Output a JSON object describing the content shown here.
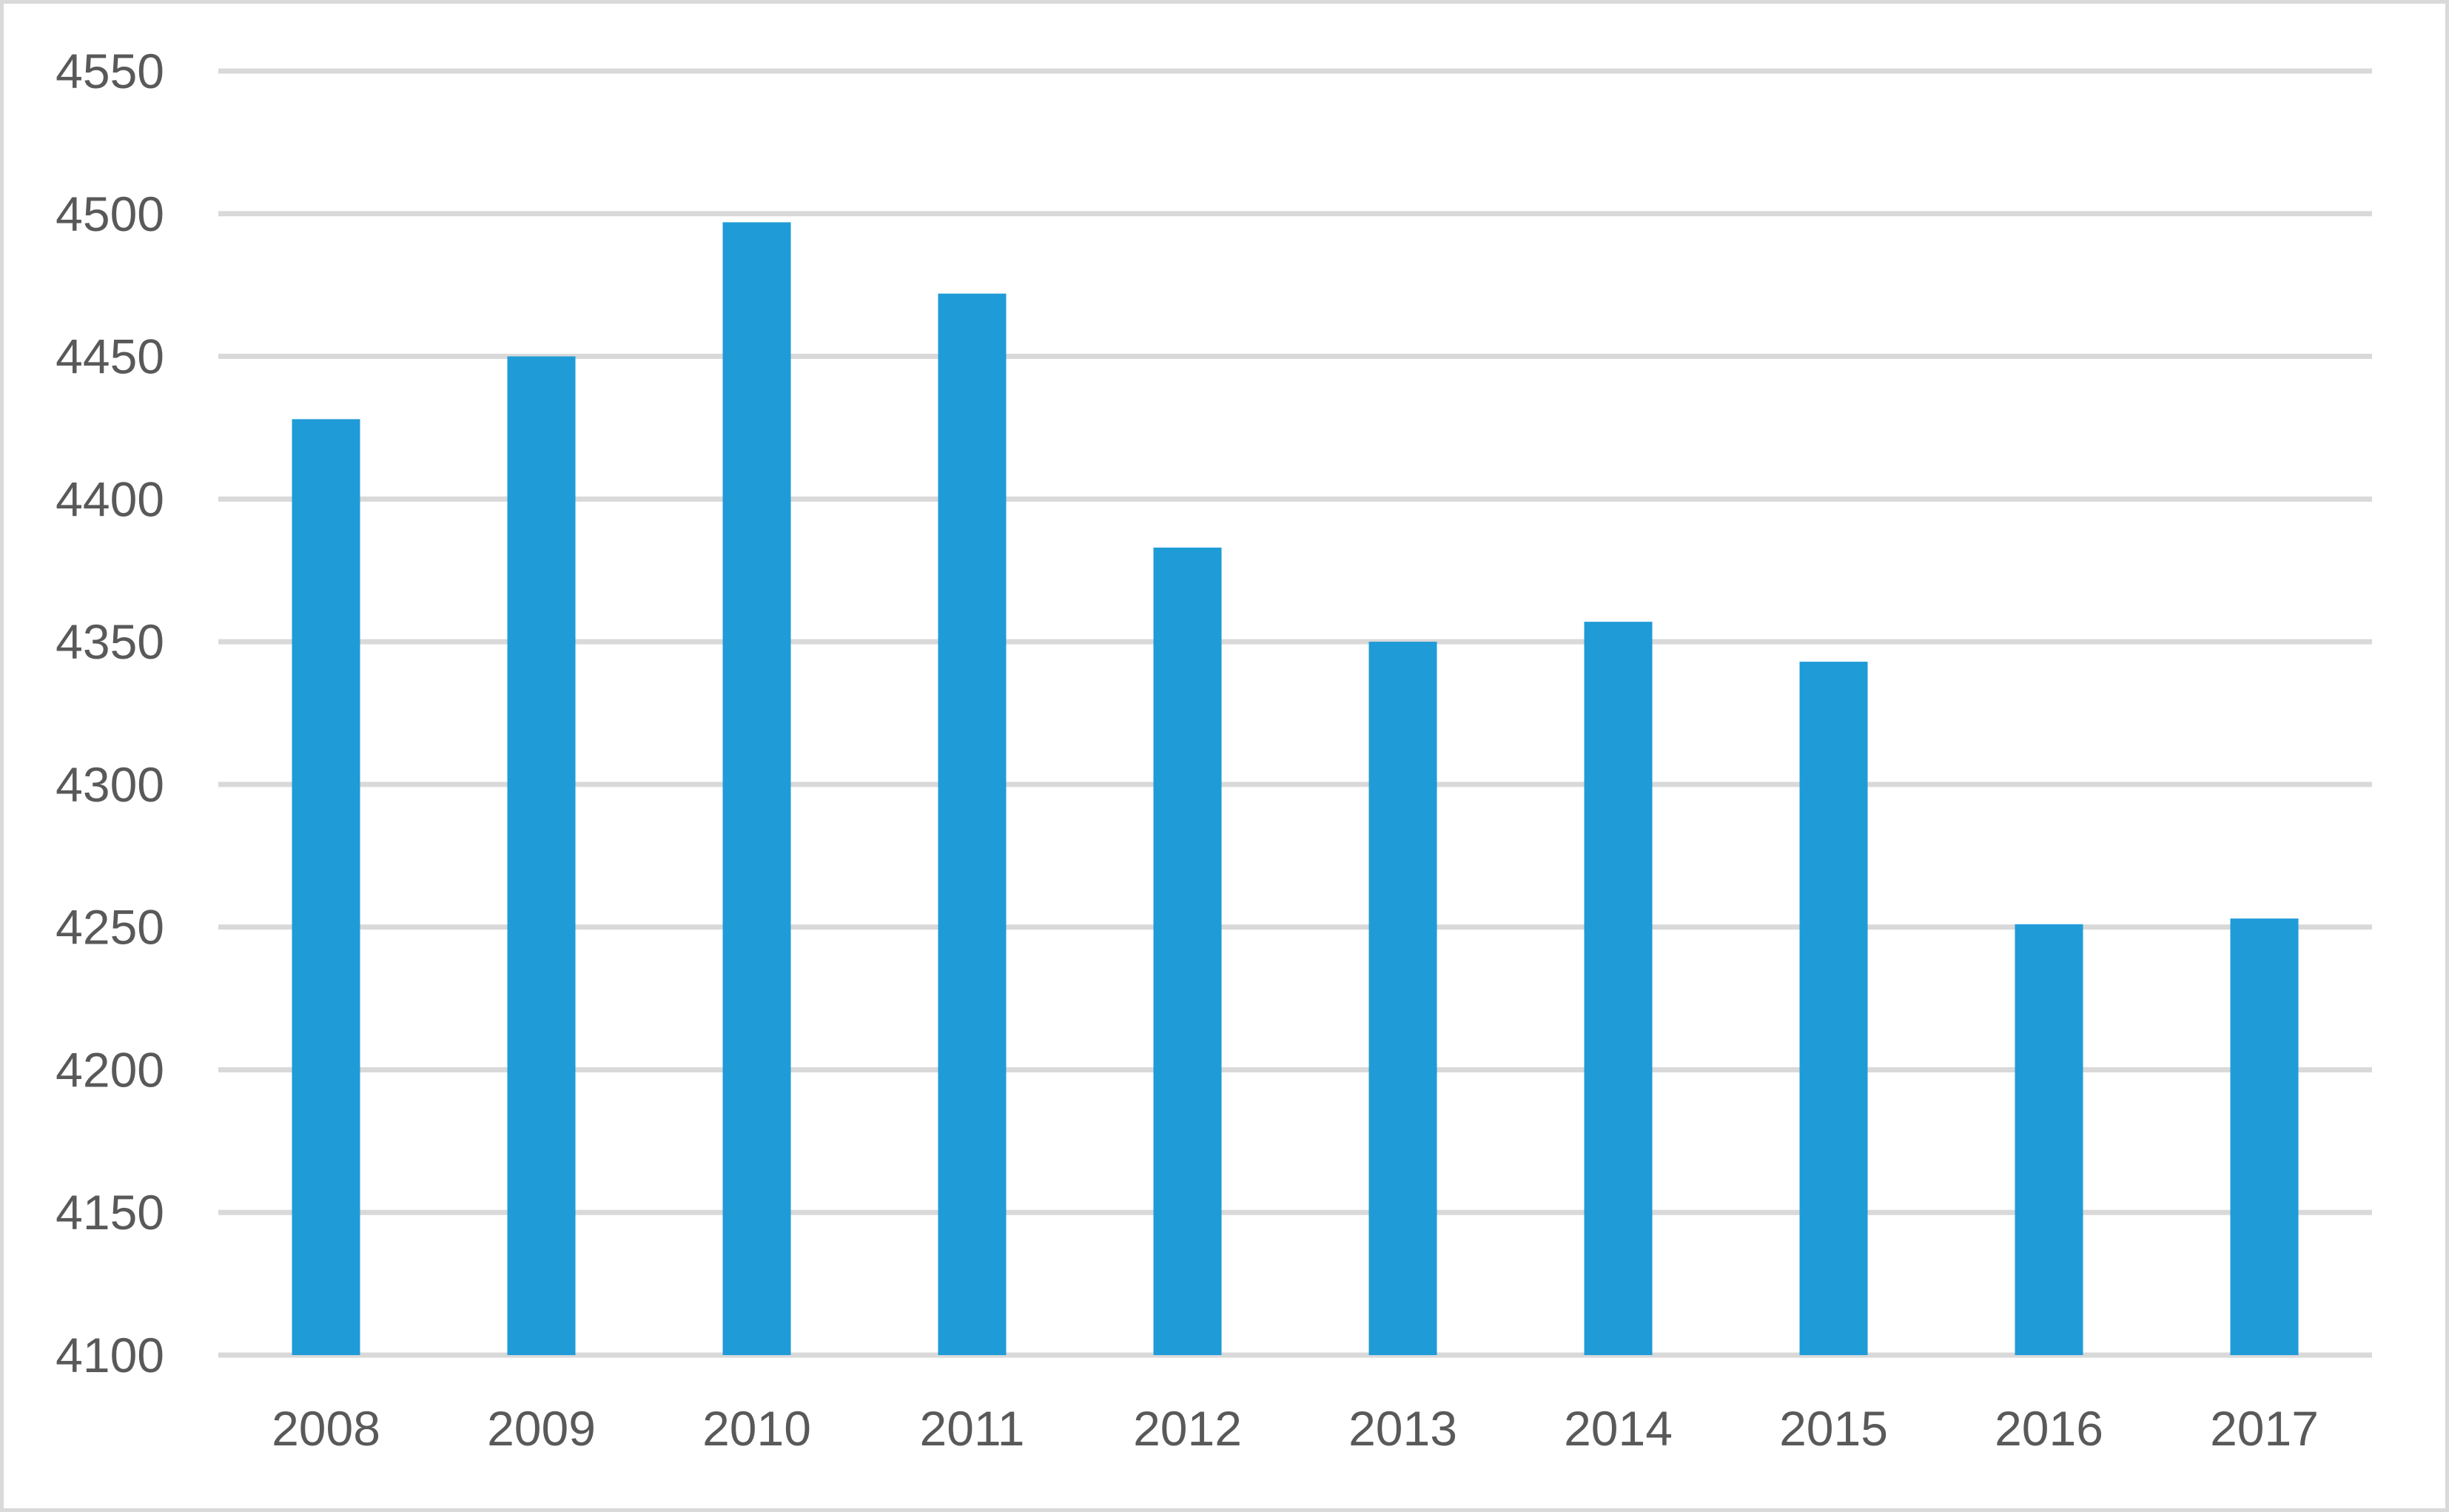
{
  "chart_data": {
    "type": "bar",
    "title": "",
    "xlabel": "",
    "ylabel": "",
    "categories": [
      "2008",
      "2009",
      "2010",
      "2011",
      "2012",
      "2013",
      "2014",
      "2015",
      "2016",
      "2017"
    ],
    "values": [
      4428,
      4450,
      4497,
      4472,
      4383,
      4350,
      4357,
      4343,
      4251,
      4253
    ],
    "ylim": [
      4100,
      4550
    ],
    "yticks": [
      4100,
      4150,
      4200,
      4250,
      4300,
      4350,
      4400,
      4450,
      4500,
      4550
    ],
    "ytick_labels": [
      "4100",
      "4150",
      "4200",
      "4250",
      "4300",
      "4350",
      "4400",
      "4450",
      "4500",
      "4550"
    ],
    "grid": true,
    "legend": "none",
    "colors": {
      "bar": "#1f9bd7",
      "grid": "#d9d9d9",
      "text": "#595959",
      "border": "#d9d9d9"
    }
  }
}
